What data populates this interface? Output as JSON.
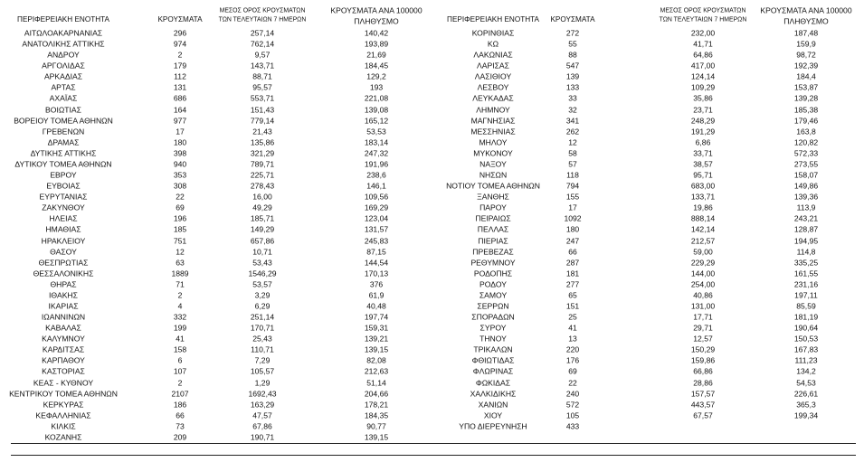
{
  "tables": [
    {
      "header": [
        "ΠΕΡΙΦΕΡΕΙΑΚΗ ΕΝΟΤΗΤΑ",
        "ΚΡΟΥΣΜΑΤΑ",
        [
          "ΜΕΣΟΣ ΟΡΟΣ ΚΡΟΥΣΜΑΤΩΝ",
          "ΤΩΝ ΤΕΛΕΥΤΑΙΩΝ 7 ΗΜΕΡΩΝ"
        ],
        [
          "ΚΡΟΥΣΜΑΤΑ ΑΝΑ 100000",
          "ΠΛΗΘΥΣΜΟ"
        ]
      ],
      "rows": [
        [
          "ΑΙΤΩΛΟΑΚΑΡΝΑΝΙΑΣ",
          "296",
          "257,14",
          "140,42"
        ],
        [
          "ΑΝΑΤΟΛΙΚΗΣ ΑΤΤΙΚΗΣ",
          "974",
          "762,14",
          "193,89"
        ],
        [
          "ΑΝΔΡΟΥ",
          "2",
          "9,57",
          "21,69"
        ],
        [
          "ΑΡΓΟΛΙΔΑΣ",
          "179",
          "143,71",
          "184,45"
        ],
        [
          "ΑΡΚΑΔΙΑΣ",
          "112",
          "88,71",
          "129,2"
        ],
        [
          "ΑΡΤΑΣ",
          "131",
          "95,57",
          "193"
        ],
        [
          "ΑΧΑΪΑΣ",
          "686",
          "553,71",
          "221,08"
        ],
        [
          "ΒΟΙΩΤΙΑΣ",
          "164",
          "151,43",
          "139,08"
        ],
        [
          "ΒΟΡΕΙΟΥ ΤΟΜΕΑ ΑΘΗΝΩΝ",
          "977",
          "779,14",
          "165,12"
        ],
        [
          "ΓΡΕΒΕΝΩΝ",
          "17",
          "21,43",
          "53,53"
        ],
        [
          "ΔΡΑΜΑΣ",
          "180",
          "135,86",
          "183,14"
        ],
        [
          "ΔΥΤΙΚΗΣ ΑΤΤΙΚΗΣ",
          "398",
          "321,29",
          "247,32"
        ],
        [
          "ΔΥΤΙΚΟΥ ΤΟΜΕΑ ΑΘΗΝΩΝ",
          "940",
          "789,71",
          "191,96"
        ],
        [
          "ΕΒΡΟΥ",
          "353",
          "225,71",
          "238,6"
        ],
        [
          "ΕΥΒΟΙΑΣ",
          "308",
          "278,43",
          "146,1"
        ],
        [
          "ΕΥΡΥΤΑΝΙΑΣ",
          "22",
          "16,00",
          "109,56"
        ],
        [
          "ΖΑΚΥΝΘΟΥ",
          "69",
          "49,29",
          "169,29"
        ],
        [
          "ΗΛΕΙΑΣ",
          "196",
          "185,71",
          "123,04"
        ],
        [
          "ΗΜΑΘΙΑΣ",
          "185",
          "149,29",
          "131,57"
        ],
        [
          "ΗΡΑΚΛΕΙΟΥ",
          "751",
          "657,86",
          "245,83"
        ],
        [
          "ΘΑΣΟΥ",
          "12",
          "10,71",
          "87,15"
        ],
        [
          "ΘΕΣΠΡΩΤΙΑΣ",
          "63",
          "53,43",
          "144,54"
        ],
        [
          "ΘΕΣΣΑΛΟΝΙΚΗΣ",
          "1889",
          "1546,29",
          "170,13"
        ],
        [
          "ΘΗΡΑΣ",
          "71",
          "53,57",
          "376"
        ],
        [
          "ΙΘΑΚΗΣ",
          "2",
          "3,29",
          "61,9"
        ],
        [
          "ΙΚΑΡΙΑΣ",
          "4",
          "6,29",
          "40,48"
        ],
        [
          "ΙΩΑΝΝΙΝΩΝ",
          "332",
          "251,14",
          "197,74"
        ],
        [
          "ΚΑΒΑΛΑΣ",
          "199",
          "170,71",
          "159,31"
        ],
        [
          "ΚΑΛΥΜΝΟΥ",
          "41",
          "25,43",
          "139,21"
        ],
        [
          "ΚΑΡΔΙΤΣΑΣ",
          "158",
          "110,71",
          "139,15"
        ],
        [
          "ΚΑΡΠΑΘΟΥ",
          "6",
          "7,29",
          "82,08"
        ],
        [
          "ΚΑΣΤΟΡΙΑΣ",
          "107",
          "105,57",
          "212,63"
        ],
        [
          "ΚΕΑΣ - ΚΥΘΝΟΥ",
          "2",
          "1,29",
          "51,14"
        ],
        [
          "ΚΕΝΤΡΙΚΟΥ ΤΟΜΕΑ ΑΘΗΝΩΝ",
          "2107",
          "1692,43",
          "204,66"
        ],
        [
          "ΚΕΡΚΥΡΑΣ",
          "186",
          "163,29",
          "178,21"
        ],
        [
          "ΚΕΦΑΛΛΗΝΙΑΣ",
          "66",
          "47,57",
          "184,35"
        ],
        [
          "ΚΙΛΚΙΣ",
          "73",
          "67,86",
          "90,77"
        ],
        [
          "ΚΟΖΑΝΗΣ",
          "209",
          "190,71",
          "139,15"
        ]
      ]
    },
    {
      "header": [
        "ΠΕΡΙΦΕΡΕΙΑΚΗ ΕΝΟΤΗΤΑ",
        "ΚΡΟΥΣΜΑΤΑ",
        [
          "ΜΕΣΟΣ ΟΡΟΣ ΚΡΟΥΣΜΑΤΩΝ",
          "ΤΩΝ ΤΕΛΕΥΤΑΙΩΝ 7 ΗΜΕΡΩΝ"
        ],
        [
          "ΚΡΟΥΣΜΑΤΑ ΑΝΑ 100000",
          "ΠΛΗΘΥΣΜΟ"
        ]
      ],
      "rows": [
        [
          "ΚΟΡΙΝΘΙΑΣ",
          "272",
          "232,00",
          "187,48"
        ],
        [
          "ΚΩ",
          "55",
          "41,71",
          "159,9"
        ],
        [
          "ΛΑΚΩΝΙΑΣ",
          "88",
          "64,86",
          "98,72"
        ],
        [
          "ΛΑΡΙΣΑΣ",
          "547",
          "417,00",
          "192,39"
        ],
        [
          "ΛΑΣΙΘΙΟΥ",
          "139",
          "124,14",
          "184,4"
        ],
        [
          "ΛΕΣΒΟΥ",
          "133",
          "109,29",
          "153,87"
        ],
        [
          "ΛΕΥΚΑΔΑΣ",
          "33",
          "35,86",
          "139,28"
        ],
        [
          "ΛΗΜΝΟΥ",
          "32",
          "23,71",
          "185,38"
        ],
        [
          "ΜΑΓΝΗΣΙΑΣ",
          "341",
          "248,29",
          "179,46"
        ],
        [
          "ΜΕΣΣΗΝΙΑΣ",
          "262",
          "191,29",
          "163,8"
        ],
        [
          "ΜΗΛΟΥ",
          "12",
          "6,86",
          "120,82"
        ],
        [
          "ΜΥΚΟΝΟΥ",
          "58",
          "33,71",
          "572,33"
        ],
        [
          "ΝΑΞΟΥ",
          "57",
          "38,57",
          "273,55"
        ],
        [
          "ΝΗΣΩΝ",
          "118",
          "95,71",
          "158,07"
        ],
        [
          "ΝΟΤΙΟΥ ΤΟΜΕΑ ΑΘΗΝΩΝ",
          "794",
          "683,00",
          "149,86"
        ],
        [
          "ΞΑΝΘΗΣ",
          "155",
          "133,71",
          "139,36"
        ],
        [
          "ΠΑΡΟΥ",
          "17",
          "19,86",
          "113,9"
        ],
        [
          "ΠΕΙΡΑΙΩΣ",
          "1092",
          "888,14",
          "243,21"
        ],
        [
          "ΠΕΛΛΑΣ",
          "180",
          "142,14",
          "128,87"
        ],
        [
          "ΠΙΕΡΙΑΣ",
          "247",
          "212,57",
          "194,95"
        ],
        [
          "ΠΡΕΒΕΖΑΣ",
          "66",
          "59,00",
          "114,8"
        ],
        [
          "ΡΕΘΥΜΝΟΥ",
          "287",
          "229,29",
          "335,25"
        ],
        [
          "ΡΟΔΟΠΗΣ",
          "181",
          "144,00",
          "161,55"
        ],
        [
          "ΡΟΔΟΥ",
          "277",
          "254,00",
          "231,16"
        ],
        [
          "ΣΑΜΟΥ",
          "65",
          "40,86",
          "197,11"
        ],
        [
          "ΣΕΡΡΩΝ",
          "151",
          "131,00",
          "85,59"
        ],
        [
          "ΣΠΟΡΑΔΩΝ",
          "25",
          "17,71",
          "181,19"
        ],
        [
          "ΣΥΡΟΥ",
          "41",
          "29,71",
          "190,64"
        ],
        [
          "ΤΗΝΟΥ",
          "13",
          "12,57",
          "150,53"
        ],
        [
          "ΤΡΙΚΑΛΩΝ",
          "220",
          "150,29",
          "167,83"
        ],
        [
          "ΦΘΙΩΤΙΔΑΣ",
          "176",
          "159,86",
          "111,23"
        ],
        [
          "ΦΛΩΡΙΝΑΣ",
          "69",
          "66,86",
          "134,2"
        ],
        [
          "ΦΩΚΙΔΑΣ",
          "22",
          "28,86",
          "54,53"
        ],
        [
          "ΧΑΛΚΙΔΙΚΗΣ",
          "240",
          "157,57",
          "226,61"
        ],
        [
          "ΧΑΝΙΩΝ",
          "572",
          "443,57",
          "365,3"
        ],
        [
          "ΧΙΟΥ",
          "105",
          "67,57",
          "199,34"
        ],
        [
          "ΥΠΟ ΔΙΕΡΕΥΝΗΣΗ",
          "433"
        ]
      ]
    }
  ]
}
